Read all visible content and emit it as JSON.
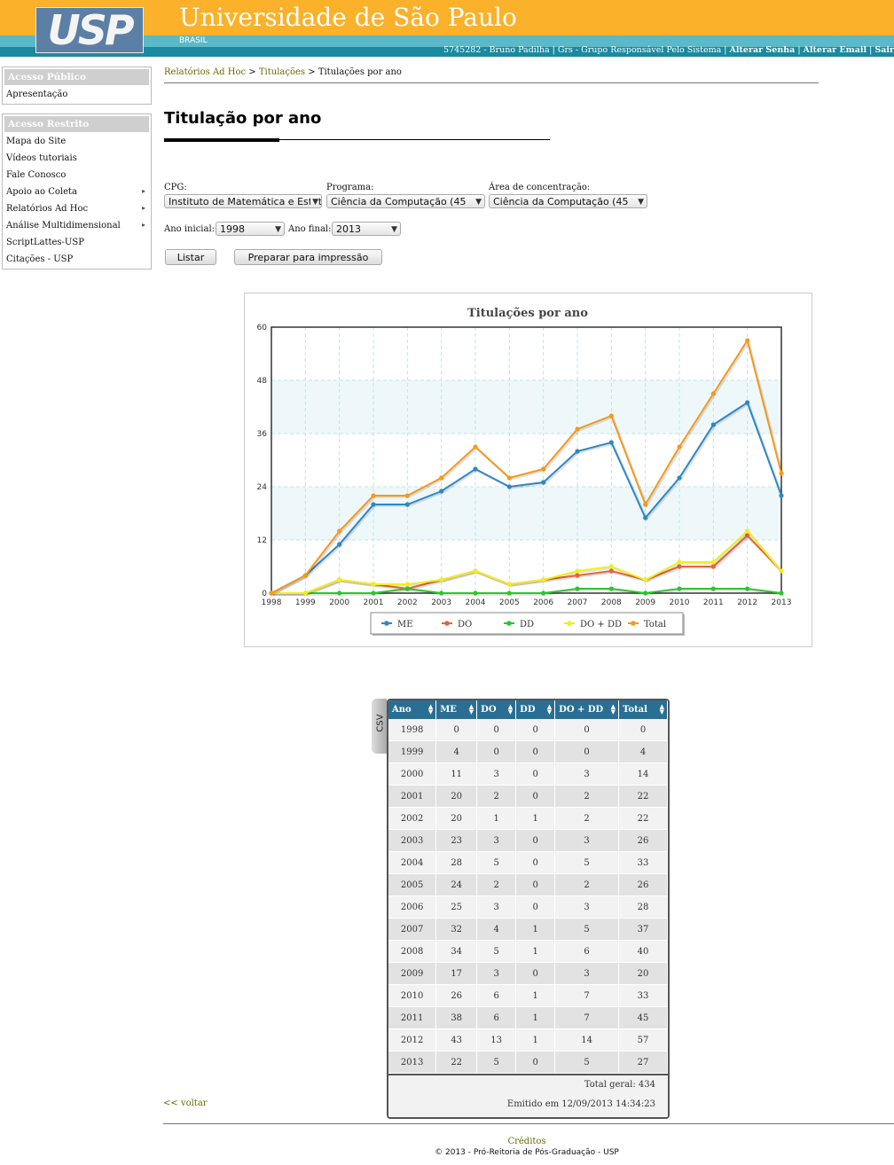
{
  "header": {
    "logo_text": "USP",
    "university": "Universidade de São Paulo",
    "country": "BRASIL",
    "user_info": "5745282 - Bruno Padilha | Grs - Grupo Responsável Pelo Sistema |",
    "change_password": "Alterar Senha",
    "change_email": "Alterar Email",
    "logout": "Sair"
  },
  "sidebar": {
    "public_title": "Acesso Público",
    "public_items": [
      "Apresentação"
    ],
    "restricted_title": "Acesso Restrito",
    "restricted_items": [
      {
        "label": "Mapa do Site",
        "submenu": false
      },
      {
        "label": "Vídeos tutoriais",
        "submenu": false
      },
      {
        "label": "Fale Conosco",
        "submenu": false
      },
      {
        "label": "Apoio ao Coleta",
        "submenu": true
      },
      {
        "label": "Relatórios Ad Hoc",
        "submenu": true
      },
      {
        "label": "Análise Multidimensional",
        "submenu": true
      },
      {
        "label": "ScriptLattes-USP",
        "submenu": false
      },
      {
        "label": "Citações - USP",
        "submenu": false
      }
    ]
  },
  "breadcrumb": {
    "items": [
      "Relatórios Ad Hoc",
      "Titulações"
    ],
    "sep": ">",
    "current": "Titulações por ano"
  },
  "page_title": "Titulação por ano",
  "filters": {
    "cpg_label": "CPG:",
    "cpg_value": "Instituto de Matemática e Estatística",
    "programa_label": "Programa:",
    "programa_value": "Ciência da Computação (45",
    "area_label": "Área de concentração:",
    "area_value": "Ciência da Computação (45",
    "ano_inicial_label": "Ano inicial:",
    "ano_inicial_value": "1998",
    "ano_final_label": "Ano final:",
    "ano_final_value": "2013",
    "listar_button": "Listar",
    "print_button": "Preparar para impressão"
  },
  "colors": {
    "ME": "#2f87c4",
    "DO": "#e8633a",
    "DD": "#2fc42f",
    "DO + DD": "#f2ee1e",
    "Total": "#f39a1d"
  },
  "chart_data": {
    "type": "line",
    "title": "Titulações por ano",
    "x": [
      "1998",
      "1999",
      "2000",
      "2001",
      "2002",
      "2003",
      "2004",
      "2005",
      "2006",
      "2007",
      "2008",
      "2009",
      "2010",
      "2011",
      "2012",
      "2013"
    ],
    "ylim": [
      0,
      60
    ],
    "yticks": [
      0,
      12,
      24,
      36,
      48,
      60
    ],
    "grid": true,
    "legend_position": "bottom",
    "series": [
      {
        "name": "ME",
        "values": [
          0,
          4,
          11,
          20,
          20,
          23,
          28,
          24,
          25,
          32,
          34,
          17,
          26,
          38,
          43,
          22
        ]
      },
      {
        "name": "DO",
        "values": [
          0,
          0,
          3,
          2,
          1,
          3,
          5,
          2,
          3,
          4,
          5,
          3,
          6,
          6,
          13,
          5
        ]
      },
      {
        "name": "DD",
        "values": [
          0,
          0,
          0,
          0,
          1,
          0,
          0,
          0,
          0,
          1,
          1,
          0,
          1,
          1,
          1,
          0
        ]
      },
      {
        "name": "DO + DD",
        "values": [
          0,
          0,
          3,
          2,
          2,
          3,
          5,
          2,
          3,
          5,
          6,
          3,
          7,
          7,
          14,
          5
        ]
      },
      {
        "name": "Total",
        "values": [
          0,
          4,
          14,
          22,
          22,
          26,
          33,
          26,
          28,
          37,
          40,
          20,
          33,
          45,
          57,
          27
        ]
      }
    ]
  },
  "table": {
    "csv_tab": "CSV",
    "columns": [
      "Ano",
      "ME",
      "DO",
      "DD",
      "DO + DD",
      "Total"
    ],
    "rows": [
      [
        "1998",
        "0",
        "0",
        "0",
        "0",
        "0"
      ],
      [
        "1999",
        "4",
        "0",
        "0",
        "0",
        "4"
      ],
      [
        "2000",
        "11",
        "3",
        "0",
        "3",
        "14"
      ],
      [
        "2001",
        "20",
        "2",
        "0",
        "2",
        "22"
      ],
      [
        "2002",
        "20",
        "1",
        "1",
        "2",
        "22"
      ],
      [
        "2003",
        "23",
        "3",
        "0",
        "3",
        "26"
      ],
      [
        "2004",
        "28",
        "5",
        "0",
        "5",
        "33"
      ],
      [
        "2005",
        "24",
        "2",
        "0",
        "2",
        "26"
      ],
      [
        "2006",
        "25",
        "3",
        "0",
        "3",
        "28"
      ],
      [
        "2007",
        "32",
        "4",
        "1",
        "5",
        "37"
      ],
      [
        "2008",
        "34",
        "5",
        "1",
        "6",
        "40"
      ],
      [
        "2009",
        "17",
        "3",
        "0",
        "3",
        "20"
      ],
      [
        "2010",
        "26",
        "6",
        "1",
        "7",
        "33"
      ],
      [
        "2011",
        "38",
        "6",
        "1",
        "7",
        "45"
      ],
      [
        "2012",
        "43",
        "13",
        "1",
        "14",
        "57"
      ],
      [
        "2013",
        "22",
        "5",
        "0",
        "5",
        "27"
      ]
    ],
    "total_geral": "Total geral: 434",
    "emitido": "Emitido em 12/09/2013 14:34:23"
  },
  "footer": {
    "voltar": "<<  voltar",
    "creditos": "Créditos",
    "copyright": "© 2013 - Pró-Reitoria de Pós-Graduação - USP"
  }
}
